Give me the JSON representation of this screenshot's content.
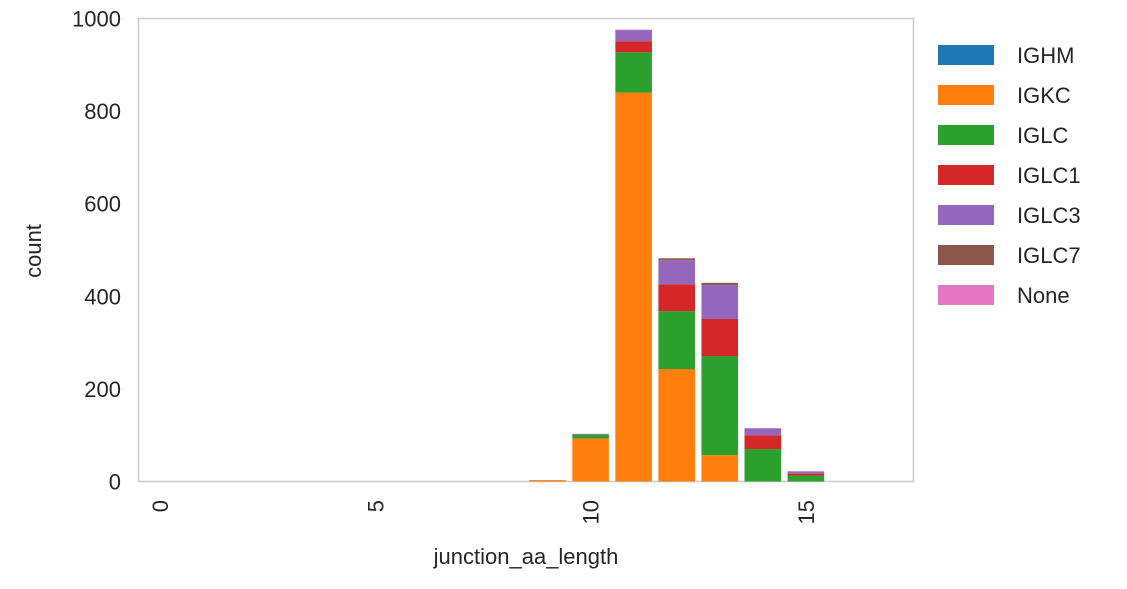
{
  "chart_data": {
    "type": "bar",
    "stacked": true,
    "title": "",
    "xlabel": "junction_aa_length",
    "ylabel": "count",
    "xlim": [
      -0.5,
      17.5
    ],
    "ylim": [
      0,
      1000
    ],
    "xticks": [
      0,
      5,
      10,
      15
    ],
    "xtick_labels": [
      "0",
      "5",
      "10",
      "15"
    ],
    "yticks": [
      0,
      200,
      400,
      600,
      800,
      1000
    ],
    "ytick_labels": [
      "0",
      "200",
      "400",
      "600",
      "800",
      "1000"
    ],
    "grid": false,
    "legend_position": "outside-top-right",
    "categories": [
      9,
      10,
      11,
      12,
      13,
      14,
      15
    ],
    "series": [
      {
        "name": "IGHM",
        "color": "#1f77b4",
        "values": [
          0,
          0,
          0,
          0,
          0,
          0,
          0
        ]
      },
      {
        "name": "IGKC",
        "color": "#ff7f0e",
        "values": [
          3,
          93,
          840,
          243,
          57,
          0,
          0
        ]
      },
      {
        "name": "IGLC",
        "color": "#2ca02c",
        "values": [
          0,
          8,
          87,
          125,
          214,
          70,
          13
        ]
      },
      {
        "name": "IGLC1",
        "color": "#d62728",
        "values": [
          0,
          0,
          24,
          58,
          80,
          30,
          4
        ]
      },
      {
        "name": "IGLC3",
        "color": "#9467bd",
        "values": [
          0,
          2,
          24,
          52,
          73,
          15,
          5
        ]
      },
      {
        "name": "IGLC7",
        "color": "#8c564b",
        "values": [
          0,
          0,
          0,
          4,
          5,
          0,
          0
        ]
      },
      {
        "name": "None",
        "color": "#e377c2",
        "values": [
          0,
          0,
          1,
          0,
          0,
          0,
          0
        ]
      }
    ]
  }
}
